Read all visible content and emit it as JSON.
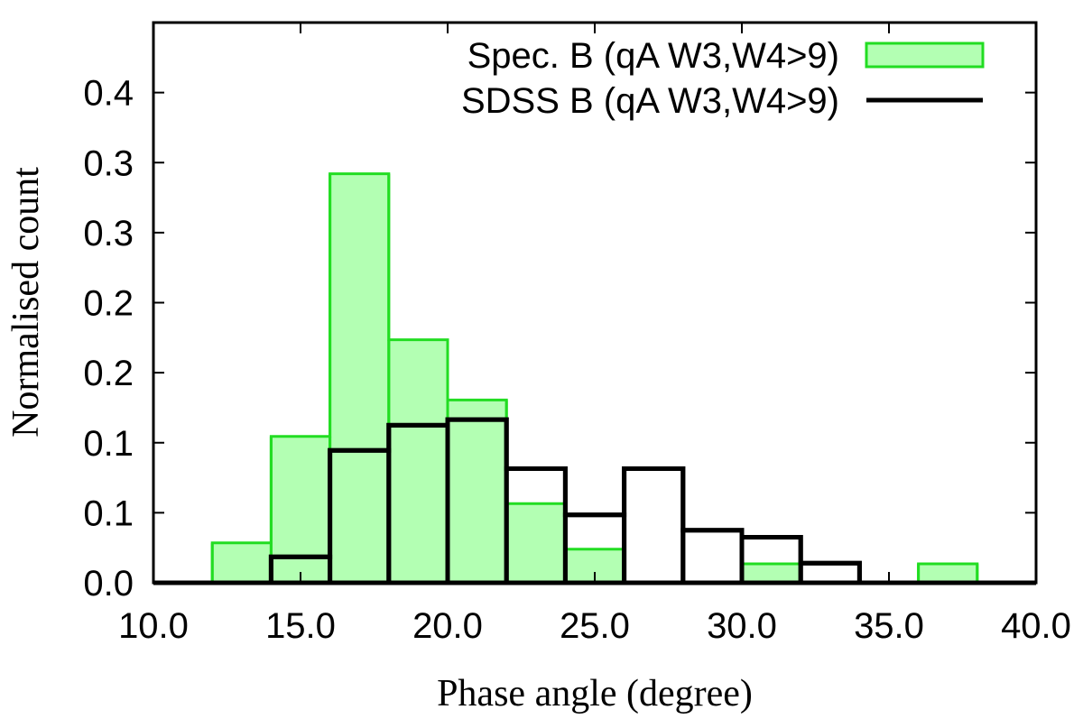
{
  "chart_data": {
    "type": "bar",
    "xlabel": "Phase angle (degree)",
    "ylabel": "Normalised count",
    "xlim": [
      10,
      40
    ],
    "ylim": [
      0,
      0.4
    ],
    "x_ticks": [
      {
        "value": 10,
        "label": "10.0"
      },
      {
        "value": 15,
        "label": "15.0"
      },
      {
        "value": 20,
        "label": "20.0"
      },
      {
        "value": 25,
        "label": "25.0"
      },
      {
        "value": 30,
        "label": "30.0"
      },
      {
        "value": 35,
        "label": "35.0"
      },
      {
        "value": 40,
        "label": "40.0"
      }
    ],
    "y_ticks": [
      {
        "value": 0.0,
        "label": "0.0"
      },
      {
        "value": 0.05,
        "label": "0.1"
      },
      {
        "value": 0.1,
        "label": "0.1"
      },
      {
        "value": 0.15,
        "label": "0.2"
      },
      {
        "value": 0.2,
        "label": "0.2"
      },
      {
        "value": 0.25,
        "label": "0.3"
      },
      {
        "value": 0.3,
        "label": "0.3"
      },
      {
        "value": 0.35,
        "label": "0.4"
      }
    ],
    "bin_edges": [
      10,
      12,
      14,
      16,
      18,
      20,
      22,
      24,
      26,
      28,
      30,
      32,
      34,
      36,
      38,
      40
    ],
    "legend_position": "top-right",
    "series": [
      {
        "name": "Spec. B (qA W3,W4>9)",
        "style": "filled",
        "fill": "#b3ffb3",
        "stroke": "#22dd22",
        "values": [
          0,
          0.0285,
          0.1045,
          0.292,
          0.1735,
          0.1305,
          0.0565,
          0.024,
          0,
          0,
          0.0135,
          0,
          0,
          0.0135,
          0
        ]
      },
      {
        "name": "SDSS B (qA W3,W4>9)",
        "style": "outline",
        "fill": "none",
        "stroke": "#000000",
        "values": [
          0,
          0,
          0.0185,
          0.0945,
          0.1125,
          0.1165,
          0.0815,
          0.0485,
          0.0815,
          0.0375,
          0.0325,
          0.014,
          0,
          0,
          0
        ]
      }
    ]
  }
}
